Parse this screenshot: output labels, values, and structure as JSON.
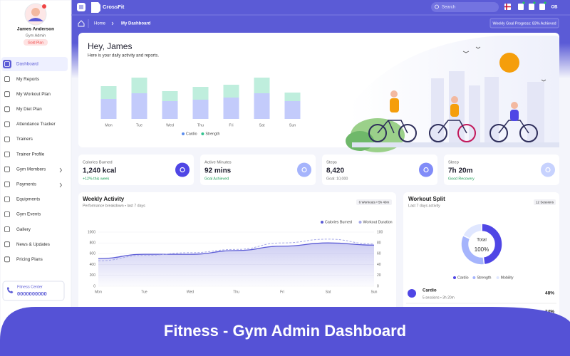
{
  "sidebar": {
    "profile": {
      "name": "James Anderson",
      "role": "Gym Admin",
      "plan": "Gold Plan"
    },
    "nav": [
      "Dashboard",
      "My Reports",
      "My Workout Plan",
      "My Diet Plan",
      "Attendance Tracker",
      "Trainers",
      "Trainer Profile",
      "Gym Members",
      "Payments",
      "Equipments",
      "Gym Events",
      "Gallery",
      "News & Updates",
      "Pricing Plans"
    ],
    "contact": {
      "label": "Fitness Center",
      "phone": "0000000000"
    }
  },
  "topbar": {
    "brand": "CrossFit",
    "search": "Search",
    "user": "OB"
  },
  "breadcrumb": {
    "items": [
      "Home",
      "My Dashboard"
    ],
    "goal": "Weekly Goal Progress: 83% Achieved"
  },
  "hero": {
    "title": "Hey, James",
    "subtitle": "Here is your daily activity and reports."
  },
  "stats": [
    {
      "label": "Calories Burned",
      "value": "1,240 kcal",
      "note": "+12% this week"
    },
    {
      "label": "Active Minutes",
      "value": "92 mins",
      "note": "Goal Achieved"
    },
    {
      "label": "Steps",
      "value": "8,420",
      "note": "Goal: 10,000"
    },
    {
      "label": "Sleep",
      "value": "7h 20m",
      "note": "Good Recovery"
    }
  ],
  "split_list": [
    {
      "name": "Cardio",
      "detail": "5 sessions • 3h 20m",
      "share": "48%"
    },
    {
      "share": "34%"
    }
  ],
  "banner": "Fitness - Gym Admin Dashboard",
  "chart_data": [
    {
      "type": "bar",
      "stacked": true,
      "categories": [
        "Mon",
        "Tue",
        "Wed",
        "Thu",
        "Fri",
        "Sat",
        "Sun"
      ],
      "ylim": [
        0,
        70
      ],
      "series": [
        {
          "name": "Cardio",
          "color": "#c3cbfb",
          "values": [
            28,
            36,
            25,
            27,
            30,
            36,
            25
          ]
        },
        {
          "name": "Strength",
          "color": "#bfeedd",
          "values": [
            18,
            22,
            14,
            18,
            18,
            22,
            12
          ]
        }
      ]
    },
    {
      "type": "line",
      "title": "Weekly Activity",
      "subtitle": "Performance breakdown • last 7 days",
      "badge": "6 Workouts • 5h 40m",
      "categories": [
        "Mon",
        "Tue",
        "Wed",
        "Thu",
        "Fri",
        "Sat",
        "Sun"
      ],
      "ylim": [
        0,
        1000
      ],
      "yticks": [
        0,
        200,
        400,
        600,
        800,
        1000
      ],
      "y2lim": [
        0,
        100
      ],
      "y2ticks": [
        0,
        20,
        40,
        60,
        80,
        100
      ],
      "grid": true,
      "series": [
        {
          "name": "Calories Burned",
          "color": "#5b5bd6",
          "values": [
            510,
            590,
            590,
            660,
            740,
            800,
            760
          ]
        },
        {
          "name": "Workout Duration",
          "color": "#a5a8e8",
          "axis": "y2",
          "values": [
            47,
            57,
            62,
            68,
            80,
            87,
            78
          ]
        }
      ]
    },
    {
      "type": "donut",
      "title": "Workout Split",
      "subtitle": "Last 7 days activity",
      "badge": "12 Sessions",
      "center": [
        "Total",
        "100%"
      ],
      "categories": [
        "Cardio",
        "Strength",
        "Mobility"
      ],
      "values": [
        48,
        34,
        18
      ],
      "colors": [
        "#4f46e5",
        "#a5b4fc",
        "#e0e7ff"
      ]
    }
  ]
}
